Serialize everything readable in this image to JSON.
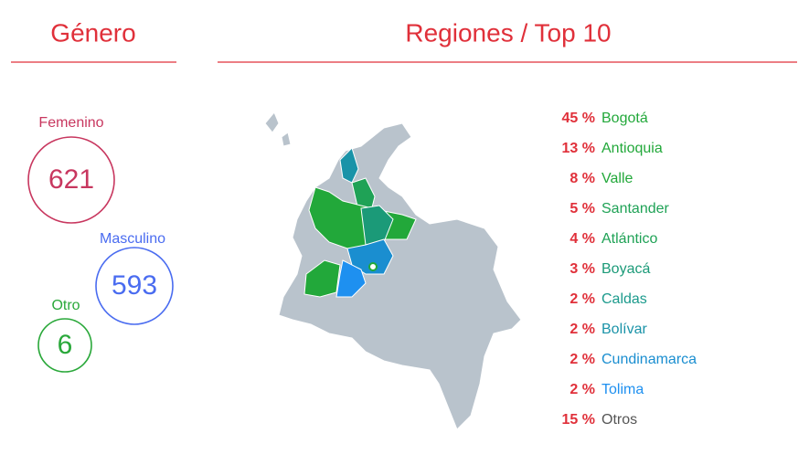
{
  "gender": {
    "title": "Género",
    "items": [
      {
        "label": "Femenino",
        "value": "621",
        "color": "#c8375f"
      },
      {
        "label": "Masculino",
        "value": "593",
        "color": "#4a6cf0"
      },
      {
        "label": "Otro",
        "value": "6",
        "color": "#2aa83a"
      }
    ]
  },
  "regions": {
    "title": "Regiones / Top 10",
    "items": [
      {
        "percent": "45 %",
        "name": "Bogotá",
        "color": "#22a83a"
      },
      {
        "percent": "13 %",
        "name": "Antioquia",
        "color": "#22a83a"
      },
      {
        "percent": "8 %",
        "name": "Valle",
        "color": "#22a83a"
      },
      {
        "percent": "5 %",
        "name": "Santander",
        "color": "#1fa256"
      },
      {
        "percent": "4 %",
        "name": "Atlántico",
        "color": "#1fa256"
      },
      {
        "percent": "3 %",
        "name": "Boyacá",
        "color": "#1b9a78"
      },
      {
        "percent": "2 %",
        "name": "Caldas",
        "color": "#1b9a8c"
      },
      {
        "percent": "2 %",
        "name": "Bolívar",
        "color": "#1a93a8"
      },
      {
        "percent": "2 %",
        "name": "Cundinamarca",
        "color": "#1a8ed0"
      },
      {
        "percent": "2 %",
        "name": "Tolima",
        "color": "#1e90f0"
      },
      {
        "percent": "15 %",
        "name": "Otros",
        "color": "#555555"
      }
    ]
  }
}
